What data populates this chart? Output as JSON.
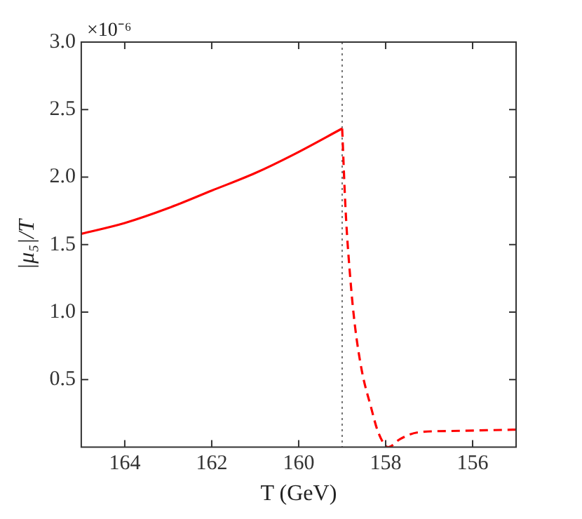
{
  "chart_data": {
    "type": "line",
    "xlabel": "T (GeV)",
    "ylabel": "|μ₅|/T",
    "annotations": [
      "×10⁻⁶"
    ],
    "xlim": [
      165,
      155
    ],
    "xticks": [
      164,
      162,
      160,
      158,
      156
    ],
    "ylim": [
      0,
      3.0
    ],
    "yticks": [
      0.5,
      {
        "value": 1,
        "label": "1.0"
      },
      1.5,
      {
        "value": 2,
        "label": "2.0"
      },
      2.5,
      {
        "value": 3,
        "label": "3.0"
      }
    ],
    "grid": false,
    "legend": false,
    "marker": "none",
    "ref_lines": [
      {
        "axis": "x",
        "value": 159,
        "color": "#555555",
        "line_style": "dotted"
      }
    ],
    "series": [
      {
        "color": "#ff0000",
        "line_style": "solid",
        "x": [
          165,
          164,
          163,
          162,
          161,
          160.1,
          159
        ],
        "values": [
          1.58,
          1.66,
          1.77,
          1.9,
          2.03,
          2.17,
          2.36
        ]
      },
      {
        "color": "#ff0000",
        "line_style": "dashed",
        "x": [
          159,
          158.92,
          158.81,
          158.71,
          158.55,
          158.34,
          158.17,
          157.94,
          157.67,
          157.25,
          156.5,
          155
        ],
        "values": [
          2.36,
          1.75,
          1.24,
          0.91,
          0.57,
          0.3,
          0.11,
          0.0,
          0.06,
          0.11,
          0.12,
          0.13
        ]
      }
    ]
  }
}
